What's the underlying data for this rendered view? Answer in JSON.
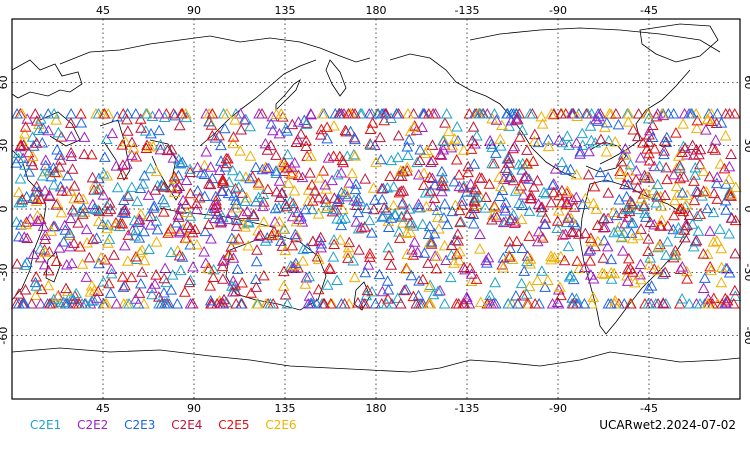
{
  "map": {
    "projection": "equirectangular, centered on 180",
    "grid": "dotted",
    "lon_ticks_top": [
      "45",
      "90",
      "135",
      "180",
      "-135",
      "-90",
      "-45"
    ],
    "lon_ticks_bottom": [
      "45",
      "90",
      "135",
      "180",
      "-135",
      "-90",
      "-45"
    ],
    "lat_ticks_left": [
      "60",
      "30",
      "0",
      "-30",
      "-60"
    ],
    "lat_ticks_right": [
      "60",
      "30",
      "0",
      "-30",
      "-60"
    ],
    "marker_shape": "open triangle",
    "observation_lat_range": [
      -45,
      45
    ]
  },
  "legend": [
    {
      "label": "C2E1",
      "color": "#1fa3c9"
    },
    {
      "label": "C2E2",
      "color": "#a020c8"
    },
    {
      "label": "C2E3",
      "color": "#1e64e6"
    },
    {
      "label": "C2E4",
      "color": "#c0143c"
    },
    {
      "label": "C2E5",
      "color": "#e01010"
    },
    {
      "label": "C2E6",
      "color": "#f0b000"
    }
  ],
  "source_label": "UCARwet2.2024-07-02"
}
